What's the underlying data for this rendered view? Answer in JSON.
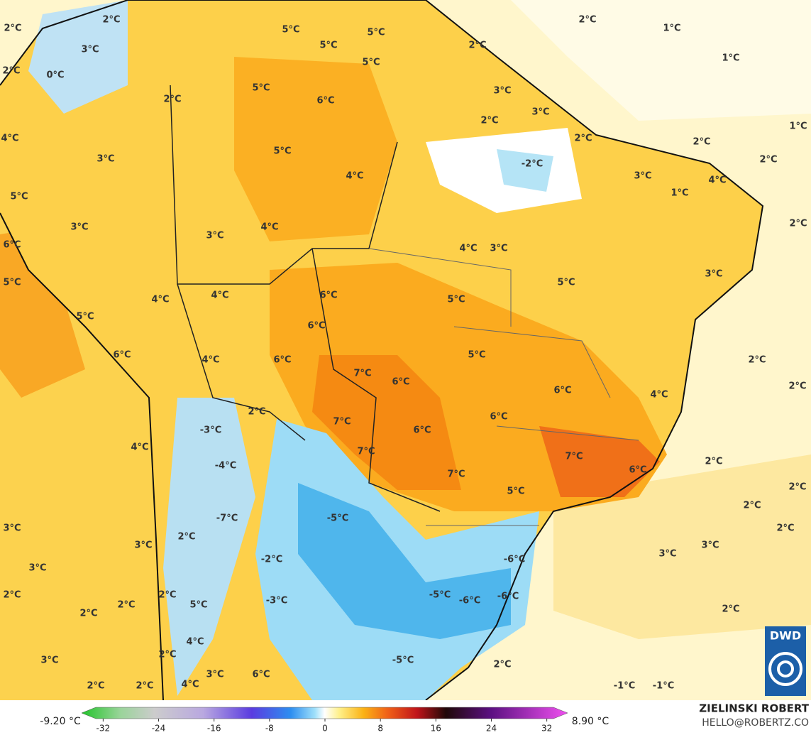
{
  "labels": [
    "2°C",
    "2°C",
    "3°C",
    "5°C",
    "5°C",
    "5°C",
    "2°C",
    "5°C",
    "2°C",
    "1°C",
    "1°C",
    "2°C",
    "0°C",
    "5°C",
    "6°C",
    "2°C",
    "3°C",
    "3°C",
    "2°C",
    "1°C",
    "4°C",
    "2°C",
    "2°C",
    "3°C",
    "5°C",
    "-2°C",
    "2°C",
    "4°C",
    "3°C",
    "4°C",
    "1°C",
    "5°C",
    "3°C",
    "3°C",
    "4°C",
    "2°C",
    "6°C",
    "4°C",
    "3°C",
    "3°C",
    "5°C",
    "5°C",
    "4°C",
    "4°C",
    "6°C",
    "5°C",
    "5°C",
    "6°C",
    "6°C",
    "5°C",
    "4°C",
    "6°C",
    "2°C",
    "2°C",
    "7°C",
    "6°C",
    "6°C",
    "4°C",
    "2°C",
    "7°C",
    "6°C",
    "-3°C",
    "6°C",
    "4°C",
    "7°C",
    "-4°C",
    "7°C",
    "6°C",
    "2°C",
    "7°C",
    "2°C",
    "5°C",
    "2°C",
    "-7°C",
    "-5°C",
    "3°C",
    "2°C",
    "2°C",
    "3°C",
    "-6°C",
    "-2°C",
    "3°C",
    "3°C",
    "3°C",
    "2°C",
    "2°C",
    "-5°C",
    "-6°C",
    "-6°C",
    "-3°C",
    "5°C",
    "2°C",
    "2°C",
    "2°C",
    "4°C",
    "-5°C",
    "3°C",
    "2°C",
    "3°C",
    "6°C",
    "2°C",
    "2°C",
    "2°C",
    "4°C",
    "-1°C",
    "-1°C"
  ],
  "colorbar": {
    "min_label": "-9.20 °C",
    "max_label": "8.90 °C",
    "ticks": [
      -32,
      -24,
      -16,
      -8,
      0,
      8,
      16,
      24,
      32
    ]
  },
  "credit": {
    "author": "ZIELINSKI ROBERT",
    "email": "HELLO@ROBERTZ.CO"
  },
  "logo": "DWD"
}
